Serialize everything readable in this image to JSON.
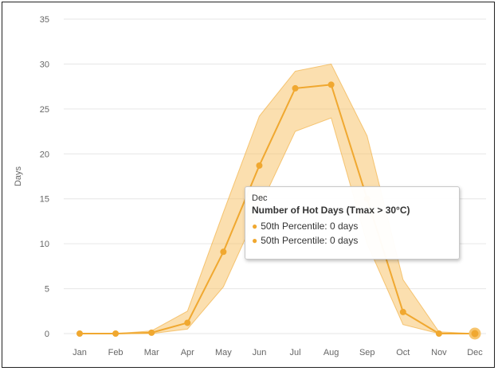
{
  "chart_data": {
    "type": "line",
    "ylabel": "Days",
    "xlabel": "",
    "ylim": [
      0,
      35
    ],
    "yticks": [
      0,
      5,
      10,
      15,
      20,
      25,
      30,
      35
    ],
    "categories": [
      "Jan",
      "Feb",
      "Mar",
      "Apr",
      "May",
      "Jun",
      "Jul",
      "Aug",
      "Sep",
      "Oct",
      "Nov",
      "Dec"
    ],
    "series": [
      {
        "values": [
          0,
          0,
          0.1,
          1.2,
          9.1,
          18.7,
          27.3,
          27.7,
          15.0,
          2.4,
          0,
          0
        ]
      }
    ],
    "band": {
      "upper": [
        0,
        0,
        0.3,
        2.5,
        13.5,
        24.2,
        29.2,
        30.0,
        22.0,
        6.0,
        0.2,
        0
      ],
      "lower": [
        0,
        0,
        0,
        0.5,
        5.2,
        14.0,
        22.5,
        24.0,
        10.0,
        1.0,
        0,
        0
      ]
    },
    "grid": true,
    "colors": {
      "line": "#f0a830",
      "band": "#f7c56e",
      "grid": "#e6e6e6"
    }
  },
  "tooltip": {
    "header": "Dec",
    "title": "Number of Hot Days (Tmax > 30°C)",
    "rows": [
      "50th Percentile: 0 days",
      "50th Percentile: 0 days"
    ]
  }
}
